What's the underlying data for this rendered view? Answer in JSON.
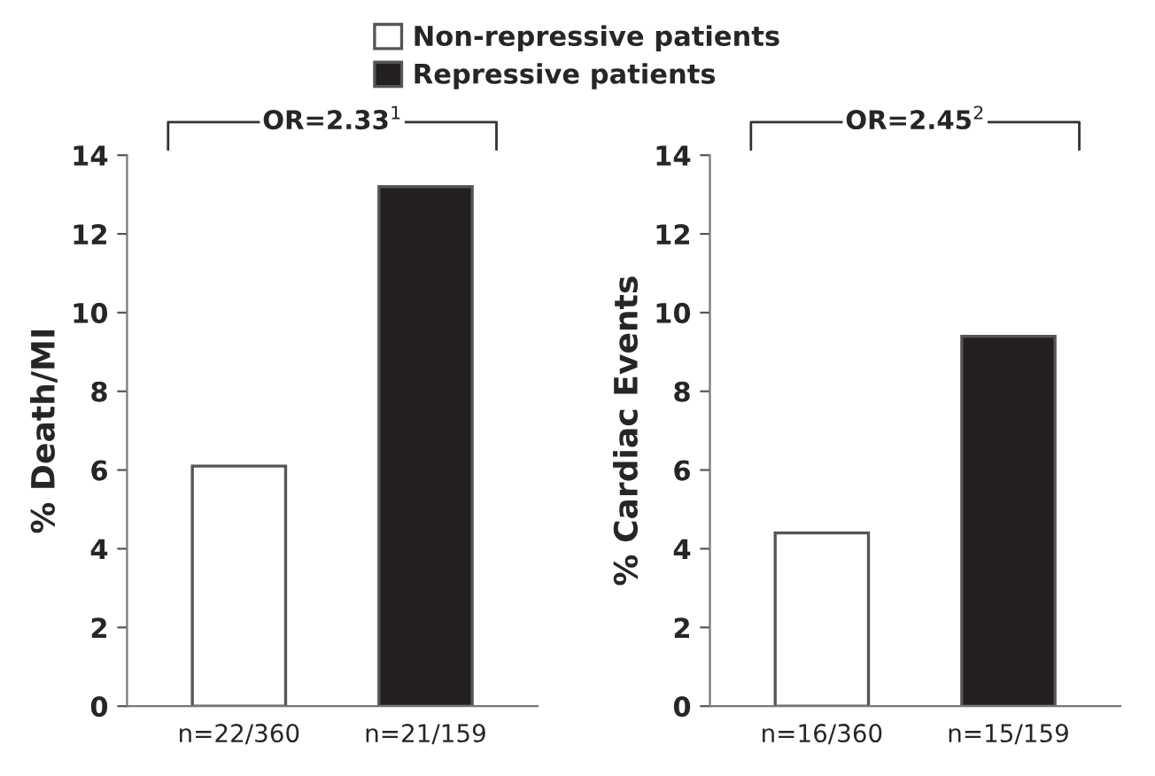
{
  "chart_data": [
    {
      "type": "bar",
      "ylabel": "% Death/MI",
      "categories": [
        "n=22/360",
        "n=21/159"
      ],
      "series": [
        {
          "name": "Non-repressive patients",
          "color": "#ffffff",
          "values": [
            6.1,
            null
          ]
        },
        {
          "name": "Repressive patients",
          "color": "#231f20",
          "values": [
            null,
            13.2
          ]
        }
      ],
      "ylim": [
        0,
        14
      ],
      "yticks": [
        0,
        2,
        4,
        6,
        8,
        10,
        12,
        14
      ],
      "annotations": [
        "OR=2.33$^{1}$"
      ],
      "legend": "top"
    },
    {
      "type": "bar",
      "ylabel": "% Cardiac Events",
      "categories": [
        "n=16/360",
        "n=15/159"
      ],
      "series": [
        {
          "color": "#ffffff",
          "values": [
            4.4,
            null
          ]
        },
        {
          "color": "#231f20",
          "values": [
            null,
            9.4
          ]
        }
      ],
      "ylim": [
        0,
        14
      ],
      "yticks": [
        0,
        2,
        4,
        6,
        8,
        10,
        12,
        14
      ],
      "annotations": [
        "OR=2.45$^{2}$"
      ]
    }
  ]
}
